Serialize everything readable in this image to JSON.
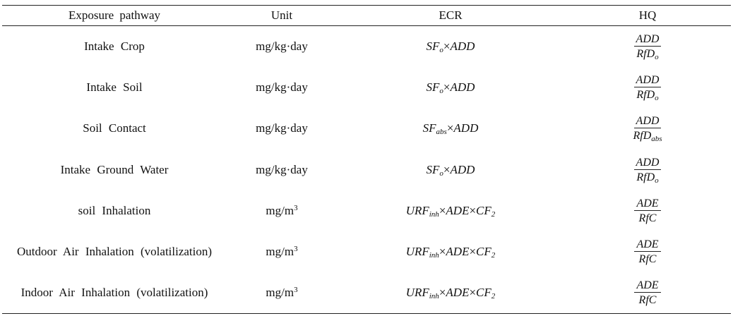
{
  "headers": {
    "pathway": "Exposure pathway",
    "unit": "Unit",
    "ecr": "ECR",
    "hq": "HQ"
  },
  "rows": [
    {
      "pathway": "Intake Crop",
      "unit": {
        "base": "mg/kg·day",
        "sup": ""
      },
      "ecr": {
        "a": "SF",
        "a_sub": "o",
        "b": "ADD",
        "c": "",
        "c_sub": ""
      },
      "hq": {
        "num": "ADD",
        "den": "RfD",
        "den_sub": "o"
      }
    },
    {
      "pathway": "Intake Soil",
      "unit": {
        "base": "mg/kg·day",
        "sup": ""
      },
      "ecr": {
        "a": "SF",
        "a_sub": "o",
        "b": "ADD",
        "c": "",
        "c_sub": ""
      },
      "hq": {
        "num": "ADD",
        "den": "RfD",
        "den_sub": "o"
      }
    },
    {
      "pathway": "Soil Contact",
      "unit": {
        "base": "mg/kg·day",
        "sup": ""
      },
      "ecr": {
        "a": "SF",
        "a_sub": "abs",
        "b": "ADD",
        "c": "",
        "c_sub": ""
      },
      "hq": {
        "num": "ADD",
        "den": "RfD",
        "den_sub": "abs"
      }
    },
    {
      "pathway": "Intake Ground Water",
      "unit": {
        "base": "mg/kg·day",
        "sup": ""
      },
      "ecr": {
        "a": "SF",
        "a_sub": "o",
        "b": "ADD",
        "c": "",
        "c_sub": ""
      },
      "hq": {
        "num": "ADD",
        "den": "RfD",
        "den_sub": "o"
      }
    },
    {
      "pathway": "soil Inhalation",
      "unit": {
        "base": "mg/m",
        "sup": "3"
      },
      "ecr": {
        "a": "URF",
        "a_sub": "inh",
        "b": "ADE",
        "c": "CF",
        "c_sub": "2"
      },
      "hq": {
        "num": "ADE",
        "den": "RfC",
        "den_sub": ""
      }
    },
    {
      "pathway": "Outdoor Air Inhalation (volatilization)",
      "unit": {
        "base": "mg/m",
        "sup": "3"
      },
      "ecr": {
        "a": "URF",
        "a_sub": "inh",
        "b": "ADE",
        "c": "CF",
        "c_sub": "2"
      },
      "hq": {
        "num": "ADE",
        "den": "RfC",
        "den_sub": ""
      }
    },
    {
      "pathway": "Indoor Air Inhalation (volatilization)",
      "unit": {
        "base": "mg/m",
        "sup": "3"
      },
      "ecr": {
        "a": "URF",
        "a_sub": "inh",
        "b": "ADE",
        "c": "CF",
        "c_sub": "2"
      },
      "hq": {
        "num": "ADE",
        "den": "RfC",
        "den_sub": ""
      }
    }
  ],
  "symbols": {
    "times": "×"
  }
}
